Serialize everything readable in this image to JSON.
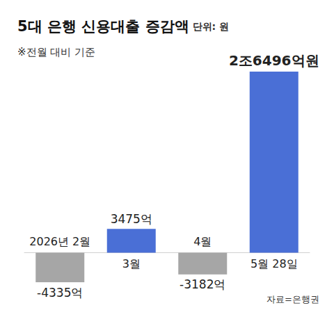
{
  "chart_data": {
    "type": "bar",
    "title": "5대 은행 신용대출 증감액",
    "subtitle": "단위: 원",
    "annotations": [
      "※전월 대비 기준",
      "자료=은행권"
    ],
    "categories": [
      "2026년 2월",
      "3월",
      "4월",
      "5월 28일"
    ],
    "values": [
      -4335,
      3475,
      -3182,
      26496
    ],
    "value_labels": [
      "-4335억",
      "3475억",
      "-3182억",
      "2조6496억원"
    ],
    "colors": [
      "#a6a6a6",
      "#4a6fd6",
      "#a6a6a6",
      "#4a6fd6"
    ],
    "ylim": [
      -4335,
      26496
    ],
    "data_labels": true,
    "tick_labels": "x",
    "grid": false
  }
}
